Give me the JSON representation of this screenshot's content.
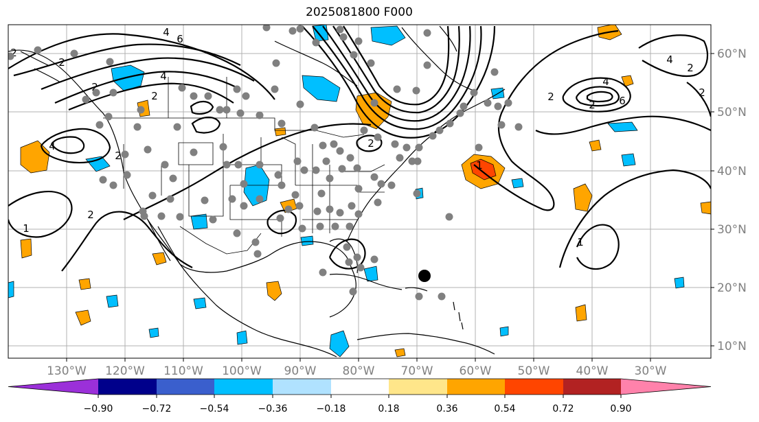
{
  "title": "2025081800 F000",
  "lon_labels": [
    "130°W",
    "120°W",
    "110°W",
    "100°W",
    "90°W",
    "80°W",
    "70°W",
    "60°W",
    "50°W",
    "40°W",
    "30°W"
  ],
  "lat_labels": [
    "60°N",
    "50°N",
    "40°N",
    "30°N",
    "20°N",
    "10°N"
  ],
  "contour_labels": [
    "2",
    "4",
    "6",
    "2",
    "4",
    "2",
    "2",
    "4",
    "2",
    "1",
    "2",
    "2",
    "4",
    "6",
    "4",
    "2",
    "2",
    "2",
    "1",
    "2",
    "1"
  ],
  "colorbar": {
    "ticks": [
      "−0.90",
      "−0.72",
      "−0.54",
      "−0.36",
      "−0.18",
      "0.18",
      "0.36",
      "0.54",
      "0.72",
      "0.90"
    ],
    "colors": [
      "#9b30d9",
      "#00008b",
      "#3a5fcd",
      "#00bfff",
      "#b0e2ff",
      "#ffffff",
      "#ffe68a",
      "#ffa500",
      "#ff4500",
      "#b22222",
      "#ff82ab"
    ]
  }
}
